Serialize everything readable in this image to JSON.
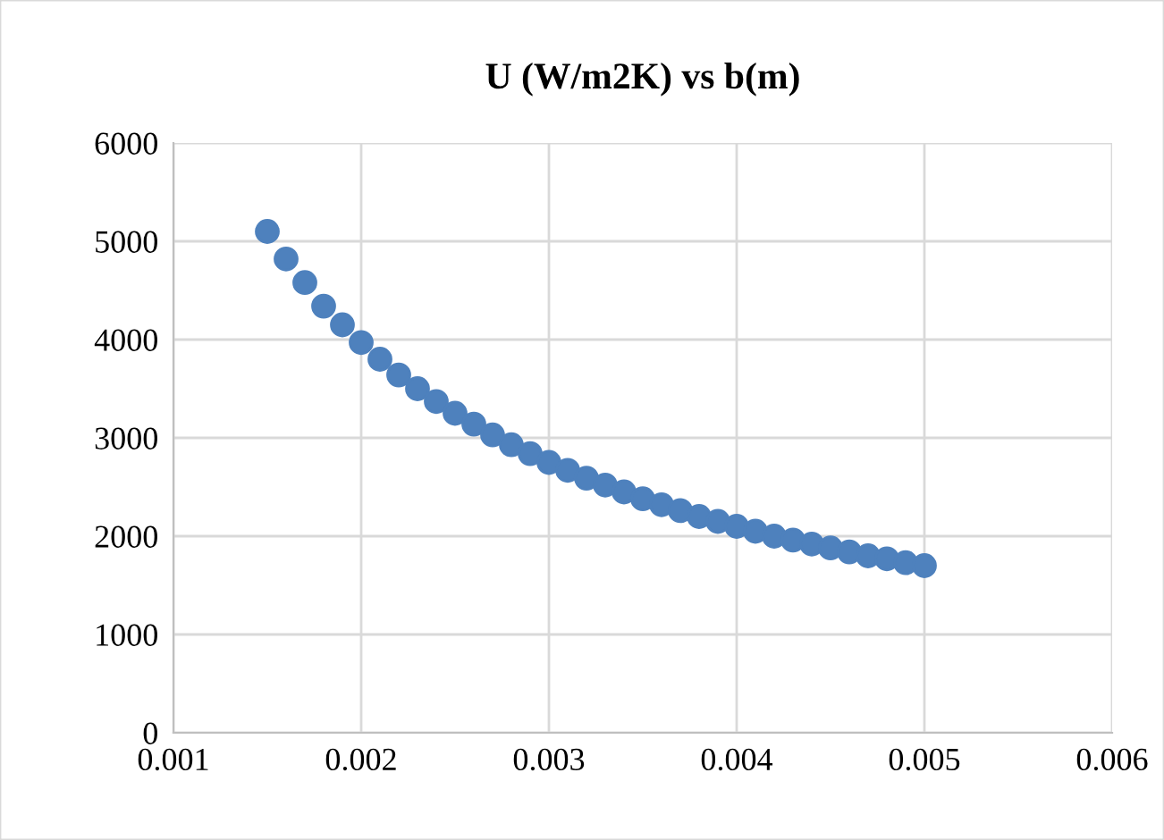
{
  "chart_data": {
    "type": "scatter",
    "title": "U (W/m2K) vs b(m)",
    "x": [
      0.0015,
      0.0016,
      0.0017,
      0.0018,
      0.0019,
      0.002,
      0.0021,
      0.0022,
      0.0023,
      0.0024,
      0.0025,
      0.0026,
      0.0027,
      0.0028,
      0.0029,
      0.003,
      0.0031,
      0.0032,
      0.0033,
      0.0034,
      0.0035,
      0.0036,
      0.0037,
      0.0038,
      0.0039,
      0.004,
      0.0041,
      0.0042,
      0.0043,
      0.0044,
      0.0045,
      0.0046,
      0.0047,
      0.0048,
      0.0049,
      0.005
    ],
    "series": [
      {
        "color": "#4e81bd",
        "values": [
          5100,
          4820,
          4580,
          4340,
          4150,
          3970,
          3800,
          3640,
          3500,
          3370,
          3250,
          3140,
          3030,
          2930,
          2840,
          2750,
          2670,
          2590,
          2520,
          2450,
          2380,
          2320,
          2260,
          2200,
          2150,
          2100,
          2050,
          2000,
          1960,
          1920,
          1880,
          1840,
          1800,
          1770,
          1730,
          1700
        ]
      }
    ],
    "xlim": [
      0.001,
      0.006
    ],
    "xticks": [
      0.001,
      0.002,
      0.003,
      0.004,
      0.005,
      0.006
    ],
    "ylim": [
      0,
      6000
    ],
    "yticks": [
      0,
      1000,
      2000,
      3000,
      4000,
      5000,
      6000
    ],
    "grid": true,
    "marker": "circle",
    "legend": false
  }
}
